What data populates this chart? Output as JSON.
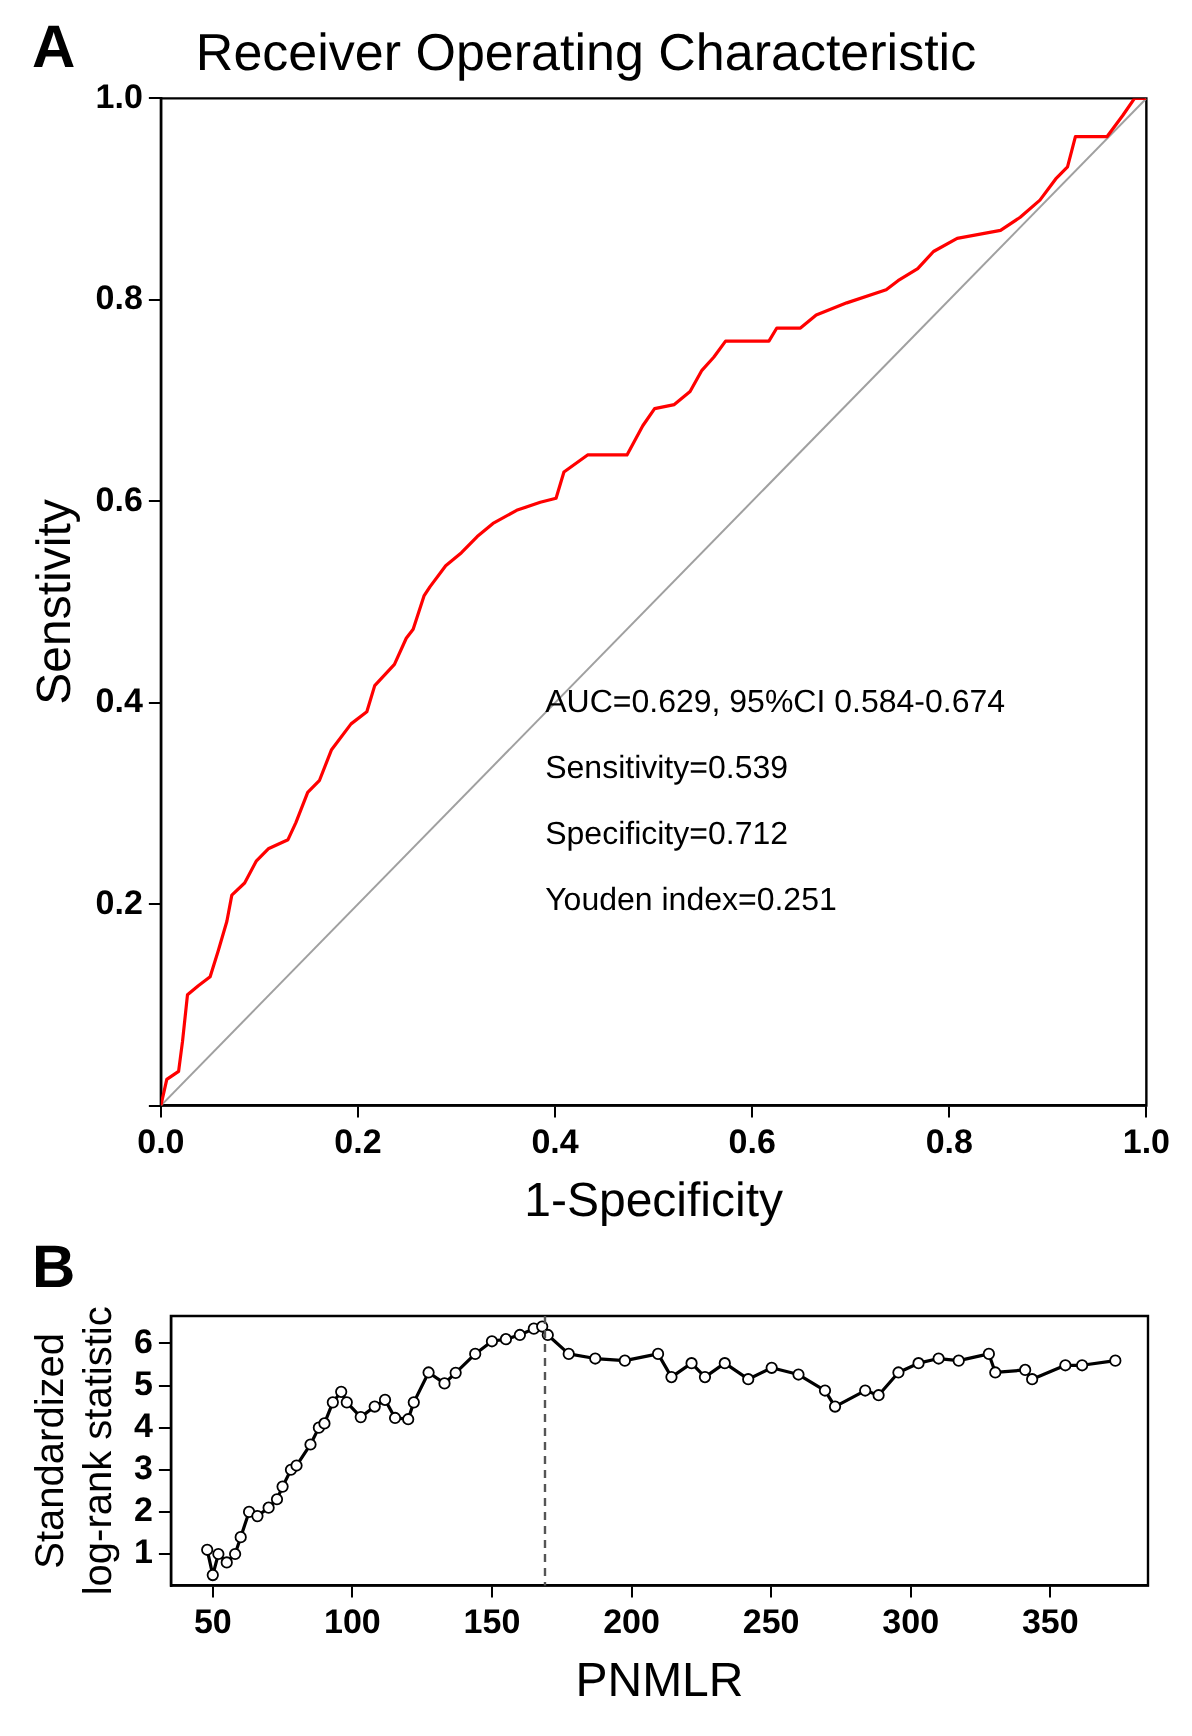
{
  "chart_data": [
    {
      "type": "line",
      "title": "Receiver Operating Characteristic",
      "xlabel": "1-Specificity",
      "ylabel": "Senstivity",
      "annotations": [
        "A",
        "AUC=0.629, 95%CI 0.584-0.674",
        "Sensitivity=0.539",
        "Specificity=0.712",
        "Youden index=0.251"
      ],
      "xlim": [
        0,
        1
      ],
      "ylim": [
        0,
        1
      ],
      "xticks": [
        {
          "value": 0,
          "label": "0.0"
        },
        0.2,
        0.4,
        0.6,
        0.8,
        {
          "value": 1,
          "label": "1.0"
        }
      ],
      "yticks": [
        {
          "value": 0,
          "label": null
        },
        0.2,
        0.4,
        0.6,
        0.8,
        {
          "value": 1,
          "label": "1.0"
        }
      ],
      "grid": false,
      "legend": false,
      "series": [
        {
          "color": "#a0a0a0",
          "x": [
            0,
            1
          ],
          "values": [
            0,
            1
          ]
        },
        {
          "color": "#ff0000",
          "x": [
            0,
            0.006,
            0.018,
            0.022,
            0.027,
            0.038,
            0.05,
            0.058,
            0.067,
            0.072,
            0.085,
            0.097,
            0.109,
            0.129,
            0.137,
            0.149,
            0.161,
            0.173,
            0.193,
            0.209,
            0.217,
            0.237,
            0.249,
            0.256,
            0.267,
            0.273,
            0.289,
            0.305,
            0.321,
            0.337,
            0.361,
            0.385,
            0.401,
            0.409,
            0.433,
            0.473,
            0.489,
            0.501,
            0.521,
            0.537,
            0.549,
            0.561,
            0.573,
            0.617,
            0.625,
            0.649,
            0.665,
            0.696,
            0.736,
            0.748,
            0.768,
            0.784,
            0.808,
            0.852,
            0.872,
            0.892,
            0.908,
            0.92,
            0.928,
            0.96,
            0.976,
            0.988,
            1
          ],
          "values": [
            0,
            0.026,
            0.034,
            0.064,
            0.11,
            0.119,
            0.128,
            0.153,
            0.183,
            0.209,
            0.221,
            0.243,
            0.255,
            0.264,
            0.281,
            0.311,
            0.323,
            0.353,
            0.379,
            0.391,
            0.417,
            0.438,
            0.464,
            0.473,
            0.506,
            0.515,
            0.536,
            0.549,
            0.565,
            0.578,
            0.591,
            0.599,
            0.603,
            0.629,
            0.646,
            0.646,
            0.675,
            0.692,
            0.696,
            0.709,
            0.73,
            0.743,
            0.759,
            0.759,
            0.772,
            0.772,
            0.785,
            0.797,
            0.81,
            0.819,
            0.831,
            0.848,
            0.861,
            0.869,
            0.882,
            0.899,
            0.92,
            0.932,
            0.962,
            0.962,
            0.983,
            1,
            1
          ]
        }
      ]
    },
    {
      "type": "line",
      "xlabel": "PNMLR",
      "ylabel": "Standardized\nlog-rank statistic",
      "annotations": [
        "B"
      ],
      "xlim": [
        35,
        385
      ],
      "ylim": [
        0.25,
        6.65
      ],
      "xticks": [
        50,
        100,
        150,
        200,
        250,
        300,
        350
      ],
      "yticks": [
        1,
        2,
        3,
        4,
        5,
        6
      ],
      "grid": false,
      "legend": false,
      "marker": "circle",
      "ref_lines": [
        {
          "axis": "x",
          "value": 169,
          "line_style": "dashed",
          "color": "#555555"
        }
      ],
      "series": [
        {
          "color": "#000000",
          "x": [
            48,
            50,
            52,
            55,
            58,
            60,
            63,
            66,
            70,
            73,
            75,
            78,
            80,
            85,
            88,
            90,
            93,
            96,
            98,
            103,
            108,
            111.7,
            115.3,
            120,
            122,
            127.3,
            133,
            137,
            144,
            150,
            155,
            160,
            165,
            168,
            170,
            177.5,
            187,
            197.6,
            209.5,
            214.3,
            221.5,
            226.3,
            233.4,
            241.8,
            250.2,
            259.8,
            269.3,
            272.9,
            283.7,
            288.5,
            295.6,
            302.8,
            310,
            317.2,
            328,
            330.3,
            341,
            343.5,
            355.4,
            361.4,
            373.3
          ],
          "values": [
            1.1,
            0.5,
            1.0,
            0.8,
            1.0,
            1.4,
            2.0,
            1.9,
            2.1,
            2.3,
            2.6,
            3.0,
            3.1,
            3.6,
            4.0,
            4.1,
            4.6,
            4.85,
            4.6,
            4.25,
            4.5,
            4.66,
            4.23,
            4.2,
            4.6,
            5.31,
            5.05,
            5.3,
            5.75,
            6.05,
            6.1,
            6.2,
            6.35,
            6.4,
            6.2,
            5.75,
            5.64,
            5.59,
            5.75,
            5.2,
            5.53,
            5.2,
            5.53,
            5.15,
            5.42,
            5.26,
            4.88,
            4.5,
            4.88,
            4.77,
            5.31,
            5.53,
            5.64,
            5.59,
            5.75,
            5.31,
            5.37,
            5.15,
            5.48,
            5.48,
            5.59
          ]
        }
      ]
    }
  ]
}
